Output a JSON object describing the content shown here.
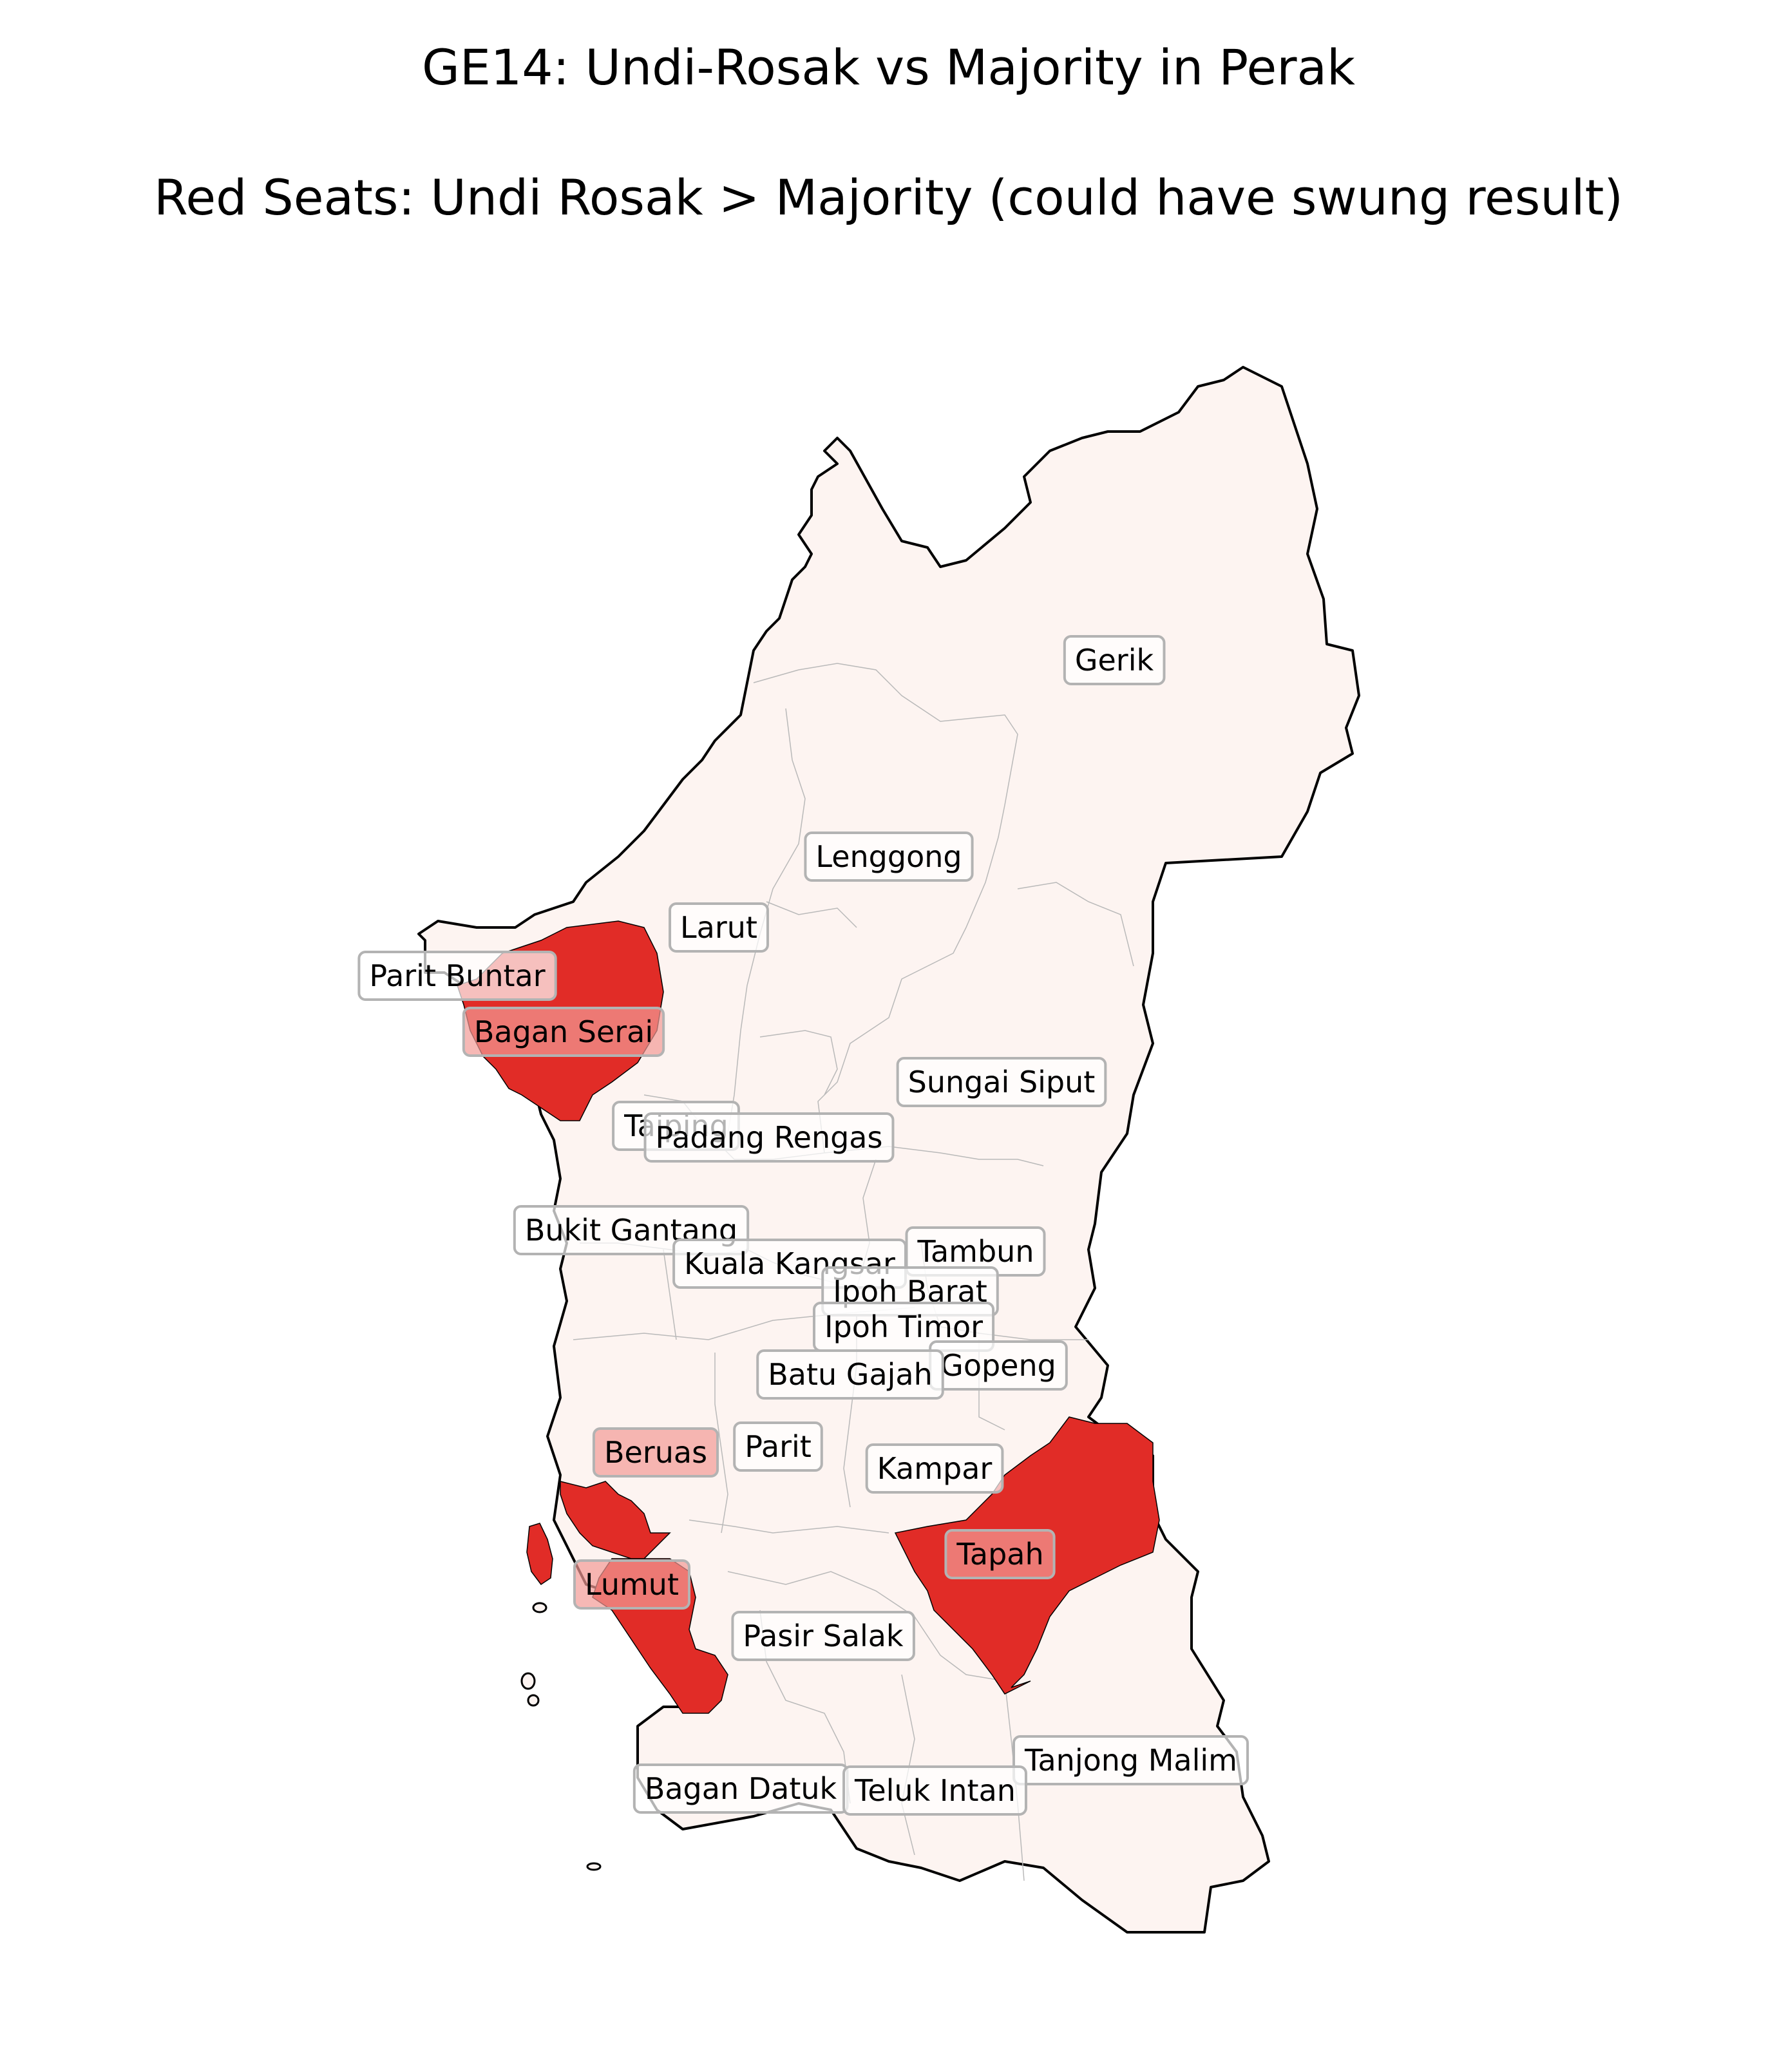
{
  "title": "GE14: Undi-Rosak vs Majority in Perak",
  "subtitle": "Red Seats: Undi Rosak > Majority (could have swung result)",
  "colors": {
    "normal_fill": "#fdf4f1",
    "red_fill": "#e12c27",
    "outline": "#000000",
    "internal_border": "#b9b9b9",
    "label_box": "#ffffff",
    "label_box_on_red": "#f29a96",
    "label_border": "#b3b3b3"
  },
  "constituencies": [
    {
      "name": "Gerik",
      "red": false
    },
    {
      "name": "Lenggong",
      "red": false
    },
    {
      "name": "Larut",
      "red": false
    },
    {
      "name": "Parit Buntar",
      "red": false
    },
    {
      "name": "Bagan Serai",
      "red": true
    },
    {
      "name": "Sungai Siput",
      "red": false
    },
    {
      "name": "Taiping",
      "red": false
    },
    {
      "name": "Padang Rengas",
      "red": false
    },
    {
      "name": "Bukit Gantang",
      "red": false
    },
    {
      "name": "Tambun",
      "red": false
    },
    {
      "name": "Kuala Kangsar",
      "red": false
    },
    {
      "name": "Ipoh Barat",
      "red": false
    },
    {
      "name": "Ipoh Timor",
      "red": false
    },
    {
      "name": "Gopeng",
      "red": false
    },
    {
      "name": "Batu Gajah",
      "red": false
    },
    {
      "name": "Beruas",
      "red": true
    },
    {
      "name": "Parit",
      "red": false
    },
    {
      "name": "Kampar",
      "red": false
    },
    {
      "name": "Tapah",
      "red": true
    },
    {
      "name": "Lumut",
      "red": true
    },
    {
      "name": "Pasir Salak",
      "red": false
    },
    {
      "name": "Tanjong Malim",
      "red": false
    },
    {
      "name": "Bagan Datuk",
      "red": false
    },
    {
      "name": "Teluk Intan",
      "red": false
    }
  ]
}
